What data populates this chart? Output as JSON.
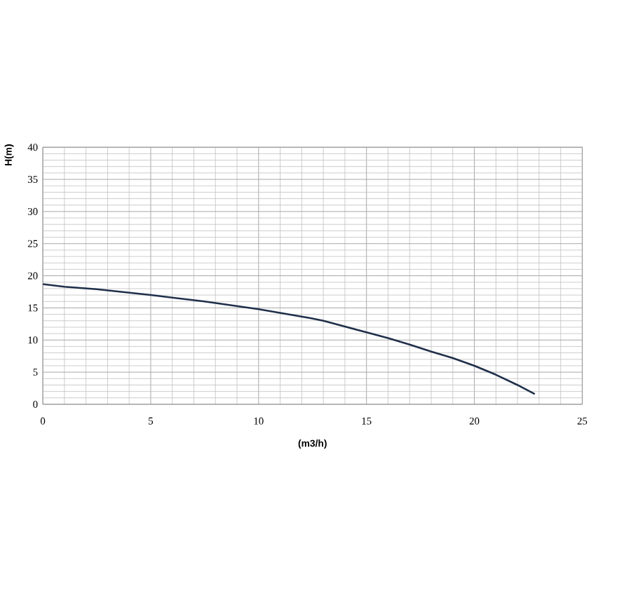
{
  "chart_data": {
    "type": "line",
    "xlabel": "(m3/h)",
    "ylabel": "H(m)",
    "x": [
      0,
      1,
      2.5,
      5,
      7.5,
      10,
      12.4,
      13,
      15,
      16,
      17,
      18,
      19,
      20,
      21,
      22,
      22.8
    ],
    "series": [
      {
        "color": "#1f2f4a",
        "values": [
          18.7,
          18.3,
          17.9,
          17.0,
          16.0,
          14.8,
          13.4,
          13.0,
          11.2,
          10.3,
          9.3,
          8.2,
          7.2,
          6.0,
          4.6,
          3.0,
          1.6
        ]
      }
    ],
    "xlim": [
      0,
      25
    ],
    "ylim": [
      0,
      40
    ],
    "xticks": [
      0,
      5,
      10,
      15,
      20,
      25
    ],
    "yticks": [
      0,
      5,
      10,
      15,
      20,
      25,
      30,
      35,
      40
    ],
    "grid": true,
    "marker": "none",
    "line_style": "solid"
  }
}
